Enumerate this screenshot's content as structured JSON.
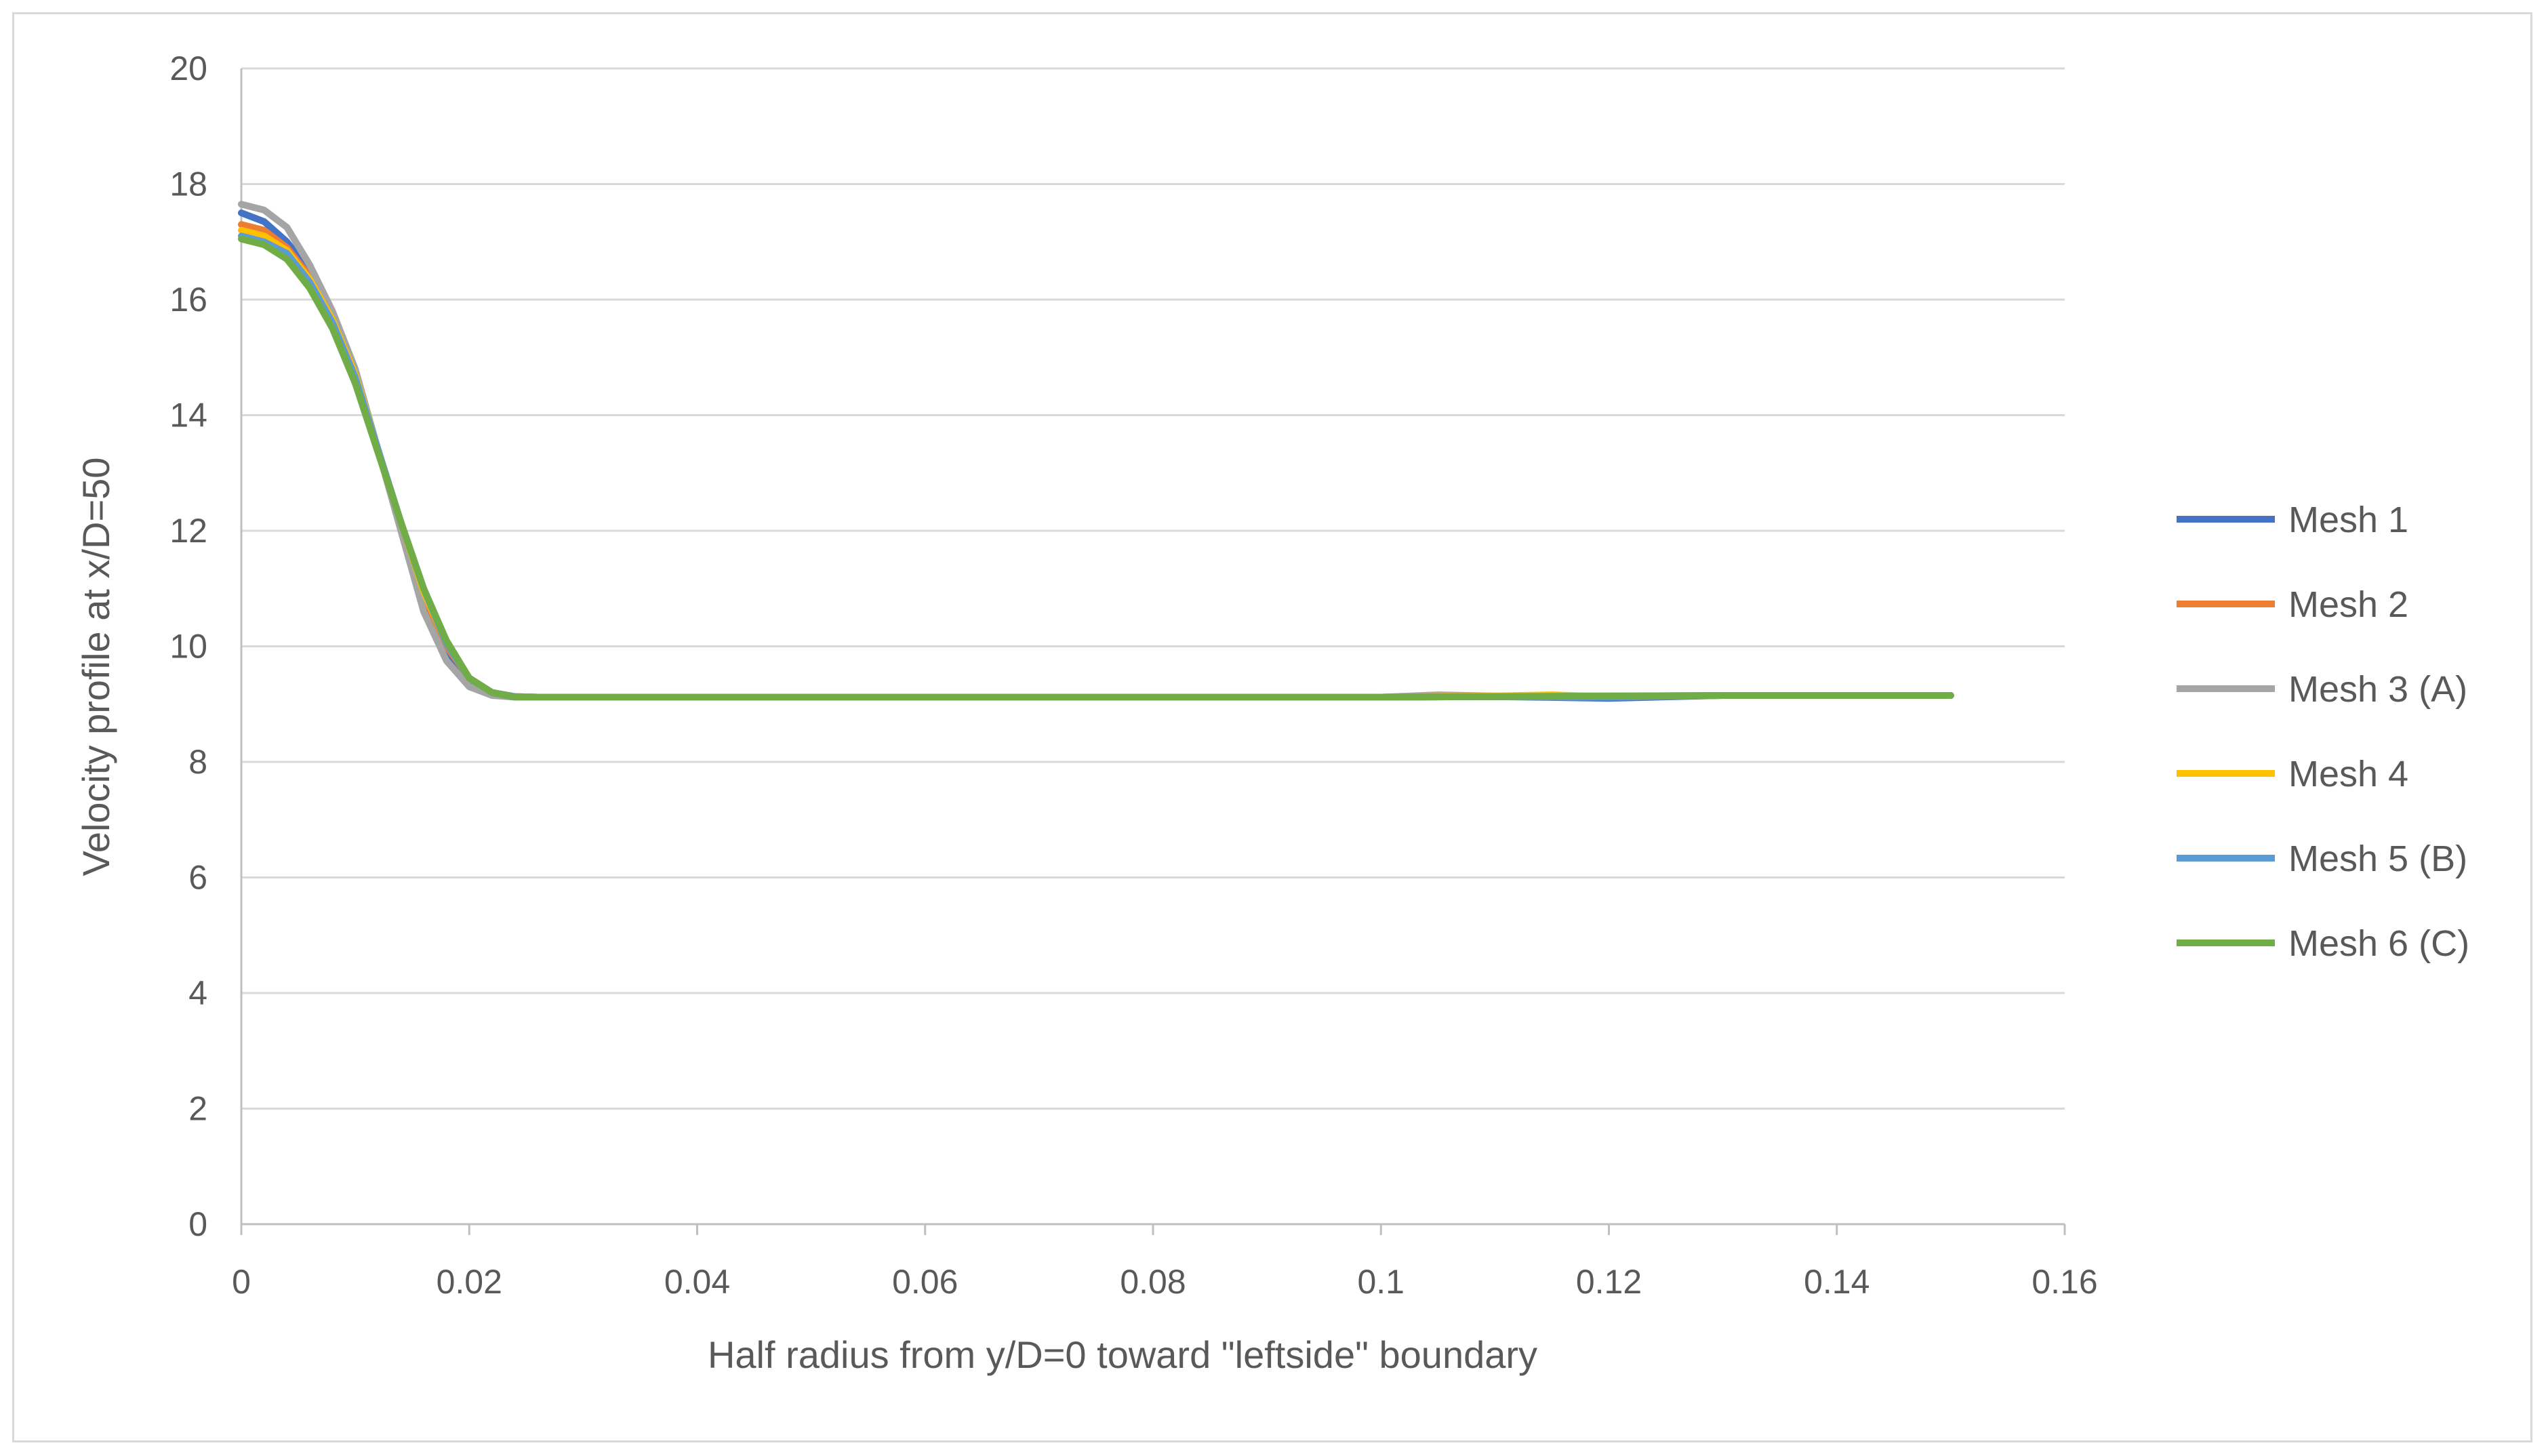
{
  "chart_data": {
    "type": "line",
    "title": "",
    "xlabel": "Half radius from y/D=0 toward \"leftside\" boundary",
    "ylabel": "Velocity profile at x/D=50",
    "xlim": [
      0,
      0.16
    ],
    "ylim": [
      0,
      20
    ],
    "x_ticks": [
      0,
      0.02,
      0.04,
      0.06,
      0.08,
      0.1,
      0.12,
      0.14,
      0.16
    ],
    "x_tick_labels": [
      "0",
      "0.02",
      "0.04",
      "0.06",
      "0.08",
      "0.1",
      "0.12",
      "0.14",
      "0.16"
    ],
    "y_ticks": [
      0,
      2,
      4,
      6,
      8,
      10,
      12,
      14,
      16,
      18,
      20
    ],
    "y_tick_labels": [
      "0",
      "2",
      "4",
      "6",
      "8",
      "10",
      "12",
      "14",
      "16",
      "18",
      "20"
    ],
    "grid": "horizontal",
    "legend_position": "right",
    "series": [
      {
        "name": "Mesh 1",
        "color": "#4472C4",
        "x": [
          0,
          0.002,
          0.004,
          0.006,
          0.008,
          0.01,
          0.012,
          0.014,
          0.016,
          0.018,
          0.02,
          0.022,
          0.024,
          0.026,
          0.03,
          0.05,
          0.08,
          0.1,
          0.11,
          0.12,
          0.13,
          0.15
        ],
        "y": [
          17.5,
          17.35,
          17.0,
          16.5,
          15.7,
          14.7,
          13.4,
          12.1,
          10.8,
          9.9,
          9.4,
          9.2,
          9.13,
          9.12,
          9.12,
          9.12,
          9.12,
          9.12,
          9.13,
          9.1,
          9.15,
          9.15
        ]
      },
      {
        "name": "Mesh 2",
        "color": "#ED7D31",
        "x": [
          0,
          0.002,
          0.004,
          0.006,
          0.008,
          0.01,
          0.012,
          0.014,
          0.016,
          0.018,
          0.02,
          0.022,
          0.024,
          0.026,
          0.03,
          0.05,
          0.08,
          0.1,
          0.11,
          0.12,
          0.13,
          0.15
        ],
        "y": [
          17.3,
          17.2,
          16.9,
          16.4,
          15.7,
          14.7,
          13.4,
          12.1,
          10.9,
          10.0,
          9.45,
          9.2,
          9.13,
          9.12,
          9.12,
          9.12,
          9.12,
          9.12,
          9.13,
          9.12,
          9.15,
          9.15
        ]
      },
      {
        "name": "Mesh 3 (A)",
        "color": "#A5A5A5",
        "x": [
          0,
          0.002,
          0.004,
          0.006,
          0.008,
          0.01,
          0.012,
          0.014,
          0.016,
          0.018,
          0.02,
          0.022,
          0.024,
          0.026,
          0.03,
          0.05,
          0.08,
          0.1,
          0.105,
          0.11,
          0.12,
          0.13,
          0.15
        ],
        "y": [
          17.65,
          17.55,
          17.25,
          16.6,
          15.8,
          14.8,
          13.4,
          12.0,
          10.6,
          9.75,
          9.3,
          9.15,
          9.12,
          9.12,
          9.12,
          9.12,
          9.12,
          9.12,
          9.16,
          9.14,
          9.14,
          9.15,
          9.15
        ]
      },
      {
        "name": "Mesh 4",
        "color": "#FFC000",
        "x": [
          0,
          0.002,
          0.004,
          0.006,
          0.008,
          0.01,
          0.012,
          0.014,
          0.016,
          0.018,
          0.02,
          0.022,
          0.024,
          0.026,
          0.03,
          0.05,
          0.08,
          0.1,
          0.11,
          0.115,
          0.12,
          0.13,
          0.15
        ],
        "y": [
          17.2,
          17.1,
          16.85,
          16.35,
          15.65,
          14.7,
          13.4,
          12.15,
          10.95,
          10.05,
          9.45,
          9.2,
          9.13,
          9.12,
          9.12,
          9.12,
          9.12,
          9.12,
          9.14,
          9.16,
          9.13,
          9.15,
          9.15
        ]
      },
      {
        "name": "Mesh 5 (B)",
        "color": "#5B9BD5",
        "x": [
          0,
          0.002,
          0.004,
          0.006,
          0.008,
          0.01,
          0.012,
          0.014,
          0.016,
          0.018,
          0.02,
          0.022,
          0.024,
          0.026,
          0.03,
          0.05,
          0.08,
          0.1,
          0.11,
          0.12,
          0.13,
          0.15
        ],
        "y": [
          17.1,
          17.0,
          16.8,
          16.3,
          15.6,
          14.65,
          13.4,
          12.15,
          11.0,
          10.05,
          9.45,
          9.2,
          9.13,
          9.12,
          9.12,
          9.12,
          9.12,
          9.12,
          9.13,
          9.12,
          9.15,
          9.15
        ]
      },
      {
        "name": "Mesh 6 (C)",
        "color": "#70AD47",
        "x": [
          0,
          0.002,
          0.004,
          0.006,
          0.008,
          0.01,
          0.012,
          0.014,
          0.016,
          0.018,
          0.02,
          0.022,
          0.024,
          0.026,
          0.03,
          0.05,
          0.08,
          0.1,
          0.11,
          0.12,
          0.13,
          0.15
        ],
        "y": [
          17.05,
          16.95,
          16.7,
          16.2,
          15.5,
          14.55,
          13.35,
          12.15,
          11.0,
          10.1,
          9.45,
          9.2,
          9.12,
          9.12,
          9.12,
          9.12,
          9.12,
          9.12,
          9.13,
          9.14,
          9.15,
          9.15
        ]
      }
    ]
  }
}
